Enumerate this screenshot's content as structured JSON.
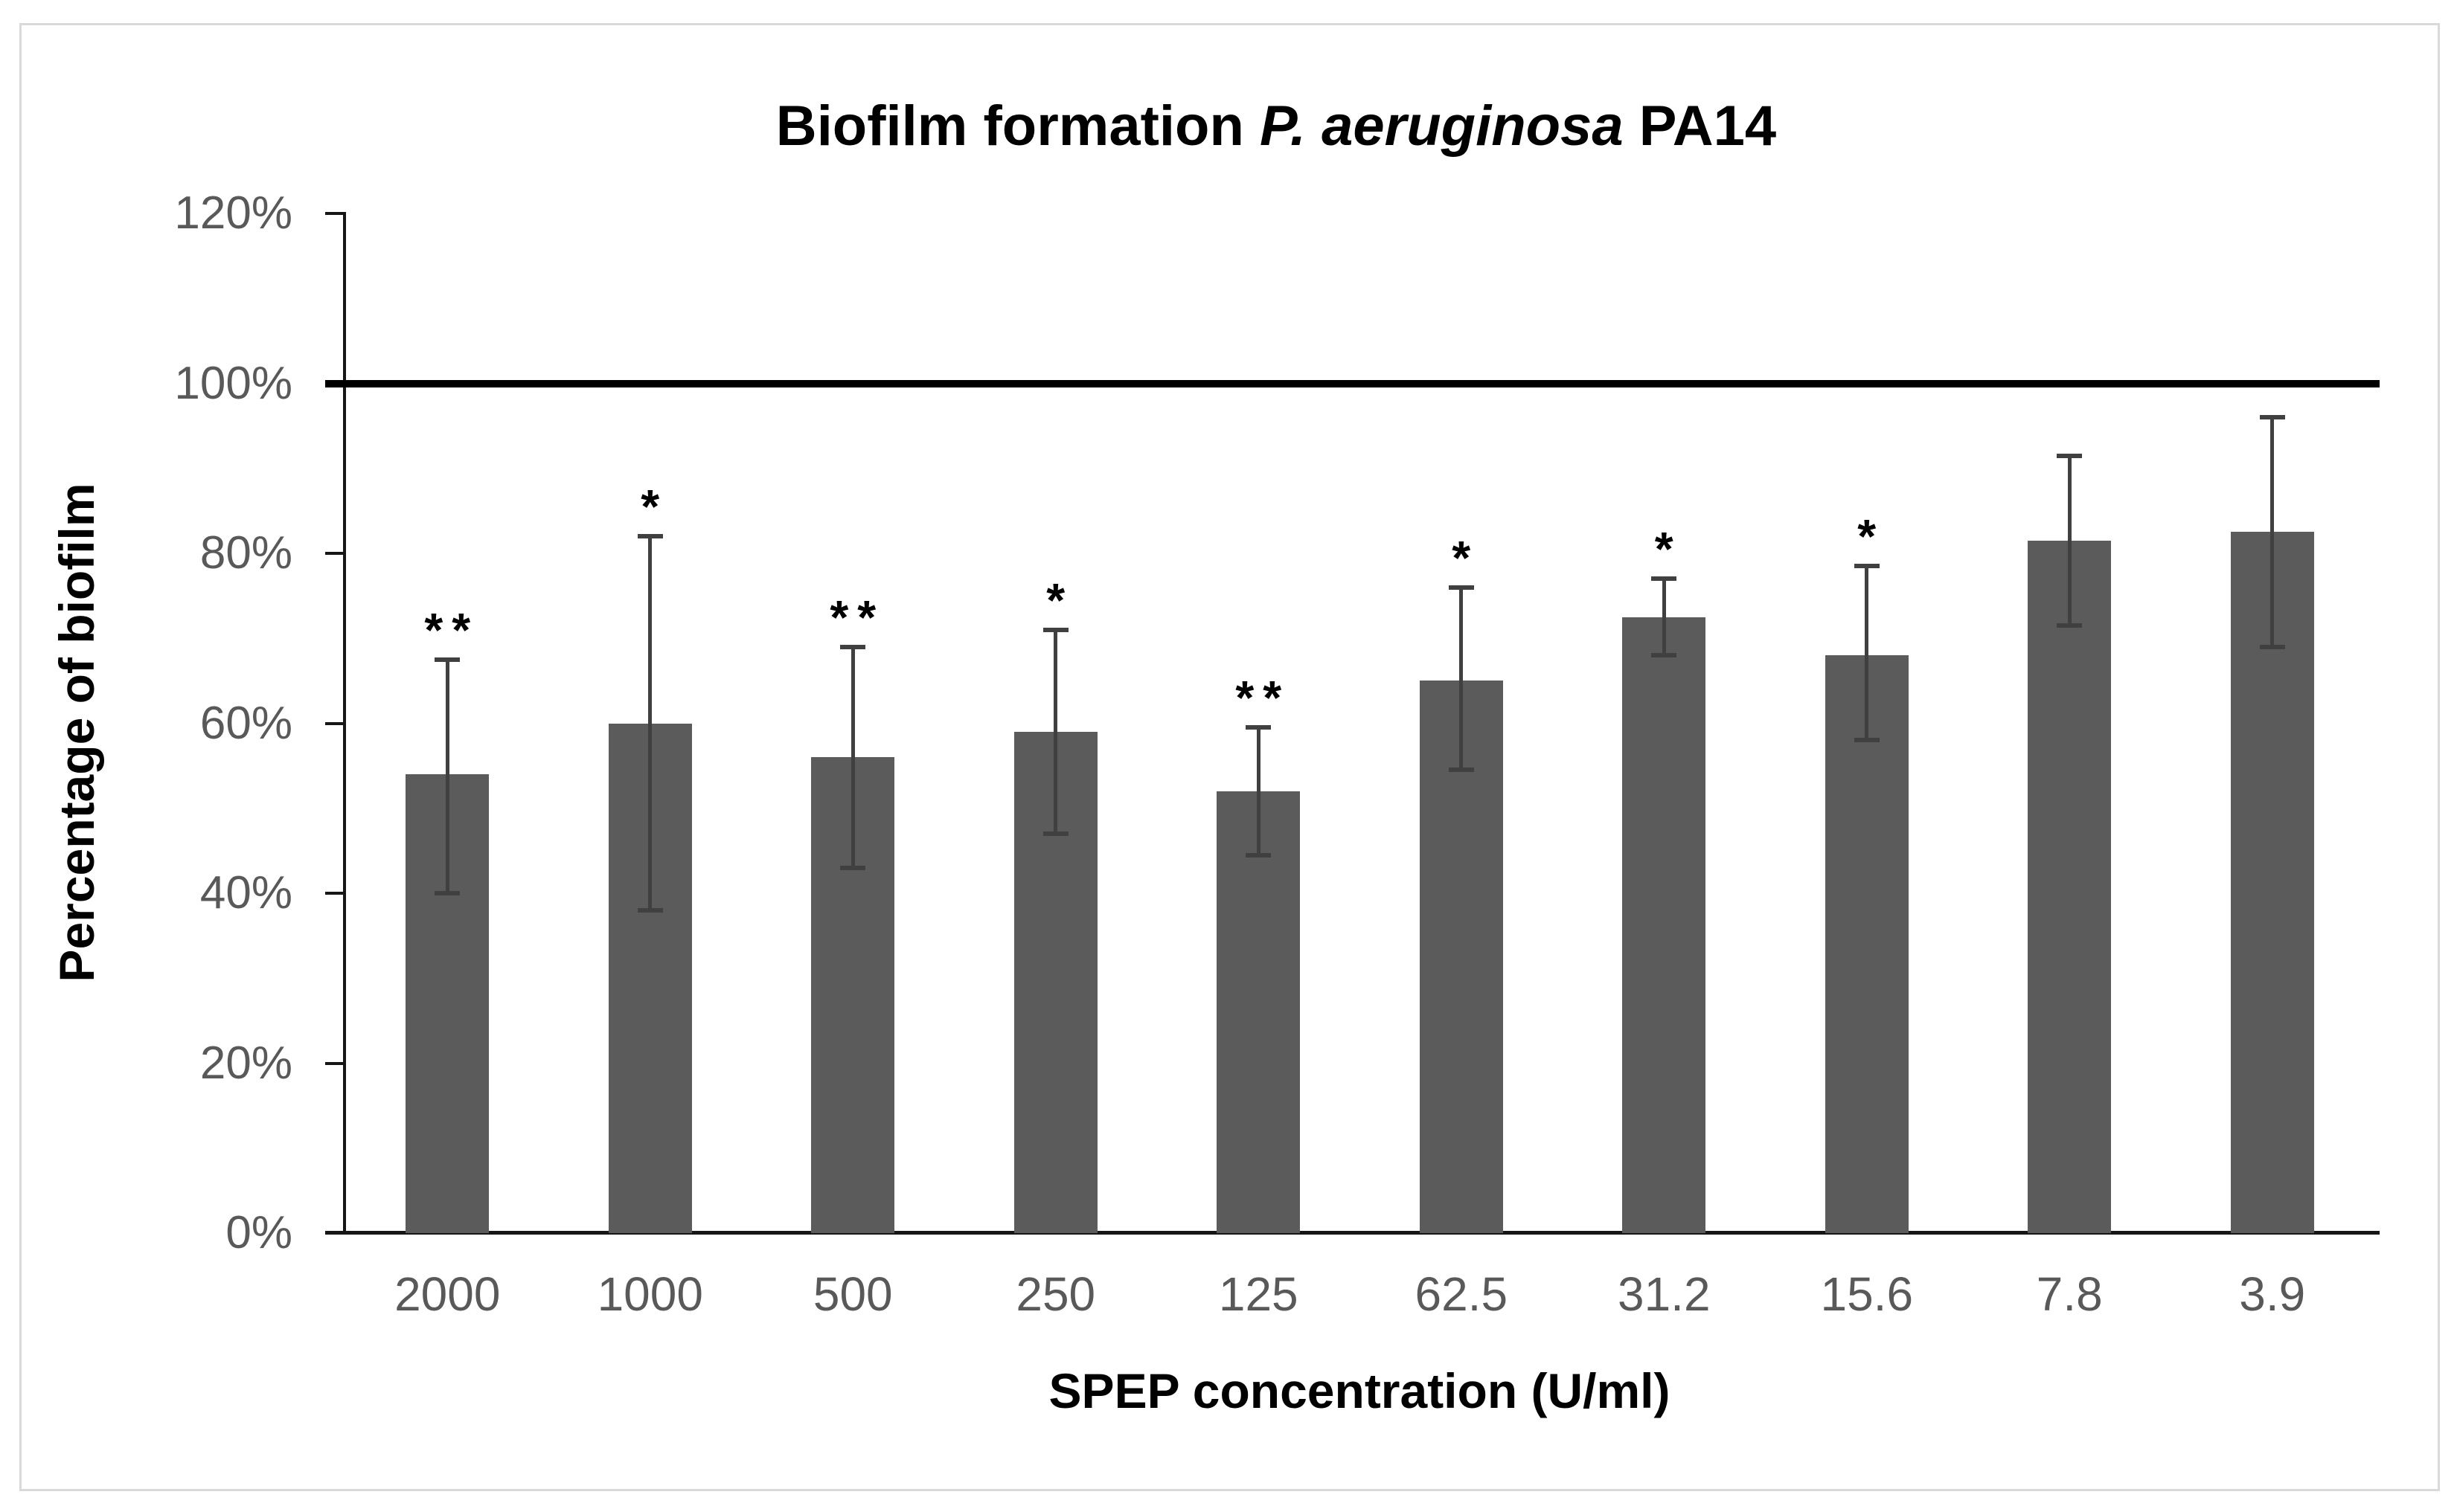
{
  "figure": {
    "title": {
      "prefix": "Biofilm formation ",
      "italic": "P. aeruginosa",
      "suffix": " PA14"
    }
  },
  "style": {
    "colors": {
      "page-bg": "#ffffff",
      "frame-border": "#d9d9d9",
      "title-color": "#000000",
      "axis-color": "#161616",
      "tick-color": "#595959",
      "refline-color": "#000000",
      "bar-fill": "#5b5b5b",
      "error-color": "#404040",
      "sig-color": "#000000"
    }
  },
  "chart_data": {
    "type": "bar",
    "title": "Biofilm formation P. aeruginosa PA14",
    "xlabel": "SPEP concentration (U/ml)",
    "ylabel": "Percentage of biofilm",
    "categories": [
      "2000",
      "1000",
      "500",
      "250",
      "125",
      "62.5",
      "31.2",
      "15.6",
      "7.8",
      "3.9"
    ],
    "values": [
      54,
      60,
      56,
      59,
      52,
      65,
      72.5,
      68,
      81.5,
      82.5
    ],
    "error_high": [
      67.5,
      82,
      69,
      71,
      59.5,
      76,
      77,
      78.5,
      91.5,
      96
    ],
    "error_low": [
      40,
      38,
      43,
      47,
      44.5,
      54.5,
      68,
      58,
      71.5,
      69
    ],
    "significance": [
      "**",
      "*",
      "**",
      "*",
      "**",
      "*",
      "*",
      "*",
      "",
      ""
    ],
    "ylim": [
      0,
      120
    ],
    "ytick_values": [
      0,
      20,
      40,
      60,
      80,
      100,
      120
    ],
    "ytick_labels": [
      "0%",
      "20%",
      "40%",
      "60%",
      "80%",
      "100%",
      "120%"
    ],
    "reference_line": 100,
    "grid": false,
    "legend": null,
    "bar_color": "#5b5b5b"
  }
}
